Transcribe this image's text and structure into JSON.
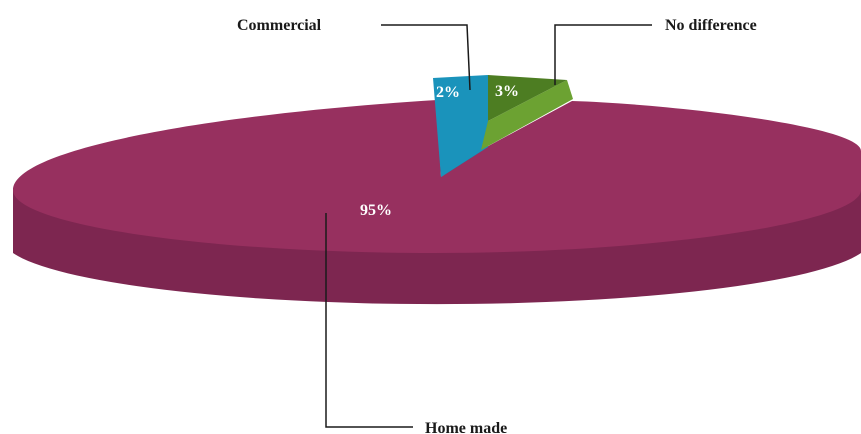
{
  "chart_data": {
    "type": "pie",
    "style": "3d-exploded",
    "categories": [
      "Home made",
      "Commercial",
      "No difference"
    ],
    "values": [
      95,
      2,
      3
    ],
    "unit": "%",
    "data_labels": [
      "95%",
      "2%",
      "3%"
    ],
    "title": "",
    "legend": "none",
    "colors": {
      "Home made": "#97305f",
      "Commercial": "#1a93bb",
      "No difference": "#6ca232"
    }
  }
}
